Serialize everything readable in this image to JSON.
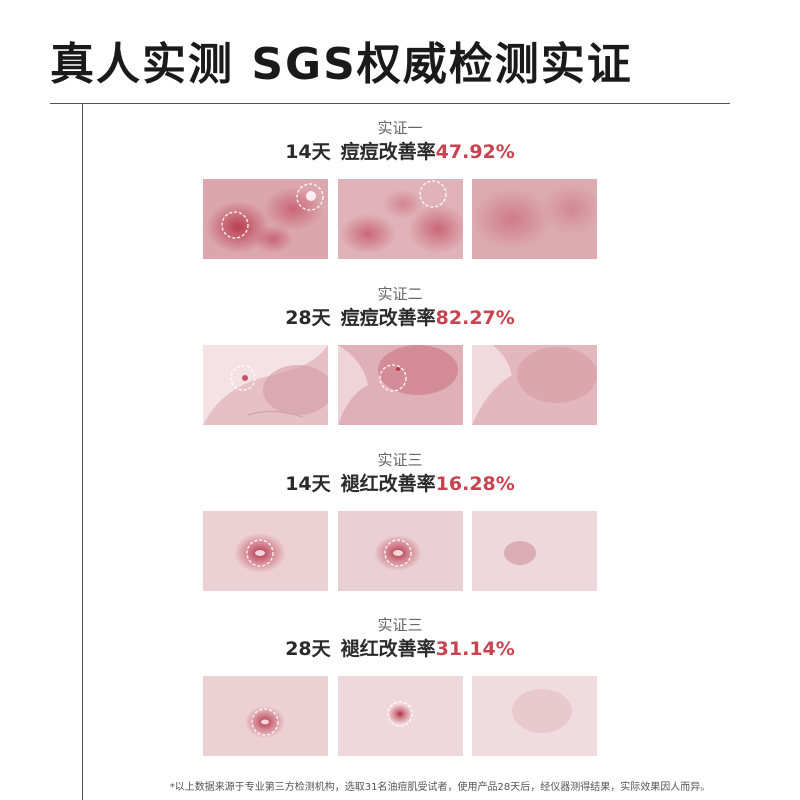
{
  "title": "真人实测 SGS权威检测实证",
  "sections": [
    {
      "label": "实证一",
      "days": "14天",
      "metric": "痘痘改善率",
      "value": "47.92%"
    },
    {
      "label": "实证二",
      "days": "28天",
      "metric": "痘痘改善率",
      "value": "82.27%"
    },
    {
      "label": "实证三",
      "days": "14天",
      "metric": "褪红改善率",
      "value": "16.28%"
    },
    {
      "label": "实证三",
      "days": "28天",
      "metric": "褪红改善率",
      "value": "31.14%"
    }
  ],
  "footnote": "*以上数据来源于专业第三方检测机构，选取31名油痘肌受试者，使用产品28天后，经仪器测得结果，实际效果因人而异。",
  "colors": {
    "accent": "#c8434f",
    "skin_base": "#e8c4c8",
    "redness": "#b8394a",
    "text_dark": "#2b2b2b"
  }
}
